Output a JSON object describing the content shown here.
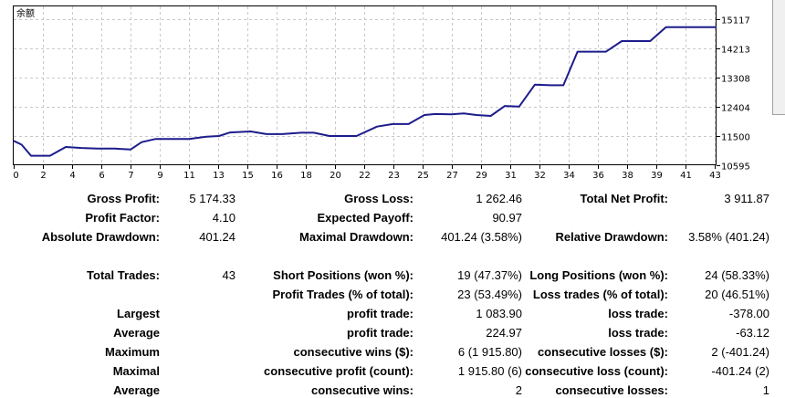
{
  "chart": {
    "title": "余额",
    "line_color": "#1c1c8c",
    "grid_color": "#c8c8c8",
    "y_ticks": [
      "15117",
      "14213",
      "13308",
      "12404",
      "11500",
      "10595"
    ],
    "x_ticks": [
      "0",
      "2",
      "4",
      "6",
      "7",
      "9",
      "11",
      "13",
      "15",
      "16",
      "18",
      "20",
      "22",
      "23",
      "25",
      "27",
      "29",
      "31",
      "32",
      "34",
      "36",
      "38",
      "39",
      "41",
      "43"
    ]
  },
  "chart_data": {
    "type": "line",
    "title": "余额",
    "xlabel": "",
    "ylabel": "",
    "ylim": [
      10595,
      15117
    ],
    "grid": true,
    "x": [
      0,
      0.5,
      1.1,
      2.3,
      3.3,
      4.3,
      5.3,
      6.4,
      7.4,
      8.1,
      9.0,
      10.1,
      11.1,
      12.2,
      13.0,
      13.7,
      15.0,
      16.0,
      17.0,
      18.2,
      19.0,
      20.0,
      21.0,
      21.7,
      23.0,
      24.0,
      25.0,
      26.0,
      26.7,
      27.7,
      28.5,
      29.3,
      30.2,
      31.1,
      32.0,
      33.0,
      34.0,
      34.8,
      35.7,
      36.7,
      37.5,
      38.5,
      39.4,
      40.3,
      41.3,
      42.2,
      42.9,
      43.9,
      44.5
    ],
    "values": [
      11350,
      11230,
      10890,
      10890,
      11160,
      11130,
      11110,
      11110,
      11080,
      11310,
      11410,
      11410,
      11410,
      11480,
      11500,
      11610,
      11640,
      11560,
      11560,
      11600,
      11600,
      11500,
      11500,
      11500,
      11790,
      11870,
      11870,
      12150,
      12180,
      12170,
      12200,
      12150,
      12120,
      12430,
      12410,
      13090,
      13070,
      13070,
      14110,
      14110,
      14110,
      14440,
      14440,
      14440,
      14870,
      14870,
      14870,
      14870,
      14870
    ]
  },
  "stats": {
    "gross_profit_label": "Gross Profit:",
    "gross_profit": "5 174.33",
    "profit_factor_label": "Profit Factor:",
    "profit_factor": "4.10",
    "abs_dd_label": "Absolute Drawdown:",
    "abs_dd": "401.24",
    "gross_loss_label": "Gross Loss:",
    "gross_loss": "1 262.46",
    "expected_payoff_label": "Expected Payoff:",
    "expected_payoff": "90.97",
    "max_dd_label": "Maximal Drawdown:",
    "max_dd": "401.24 (3.58%)",
    "net_profit_label": "Total Net Profit:",
    "net_profit": "3 911.87",
    "rel_dd_label": "Relative Drawdown:",
    "rel_dd": "3.58% (401.24)",
    "total_trades_label": "Total Trades:",
    "total_trades": "43",
    "largest_label": "Largest",
    "average_label": "Average",
    "maximum_label": "Maximum",
    "maximal_label": "Maximal",
    "average2_label": "Average",
    "short_label": "Short Positions (won %):",
    "short": "19 (47.37%)",
    "profit_trades_label": "Profit Trades (% of total):",
    "profit_trades": "23 (53.49%)",
    "largest_profit_label": "profit trade:",
    "largest_profit": "1 083.90",
    "avg_profit_label": "profit trade:",
    "avg_profit": "224.97",
    "cons_wins_label": "consecutive wins ($):",
    "cons_wins": "6 (1 915.80)",
    "cons_profit_label": "consecutive profit (count):",
    "cons_profit": "1 915.80 (6)",
    "avg_cons_wins_label": "consecutive wins:",
    "avg_cons_wins": "2",
    "long_label": "Long Positions (won %):",
    "long": "24 (58.33%)",
    "loss_trades_label": "Loss trades (% of total):",
    "loss_trades": "20 (46.51%)",
    "largest_loss_label": "loss trade:",
    "largest_loss": "-378.00",
    "avg_loss_label": "loss trade:",
    "avg_loss": "-63.12",
    "cons_losses_label": "consecutive losses ($):",
    "cons_losses": "2 (-401.24)",
    "cons_loss_label": "consecutive loss (count):",
    "cons_loss": "-401.24 (2)",
    "avg_cons_losses_label": "consecutive losses:",
    "avg_cons_losses": "1"
  }
}
